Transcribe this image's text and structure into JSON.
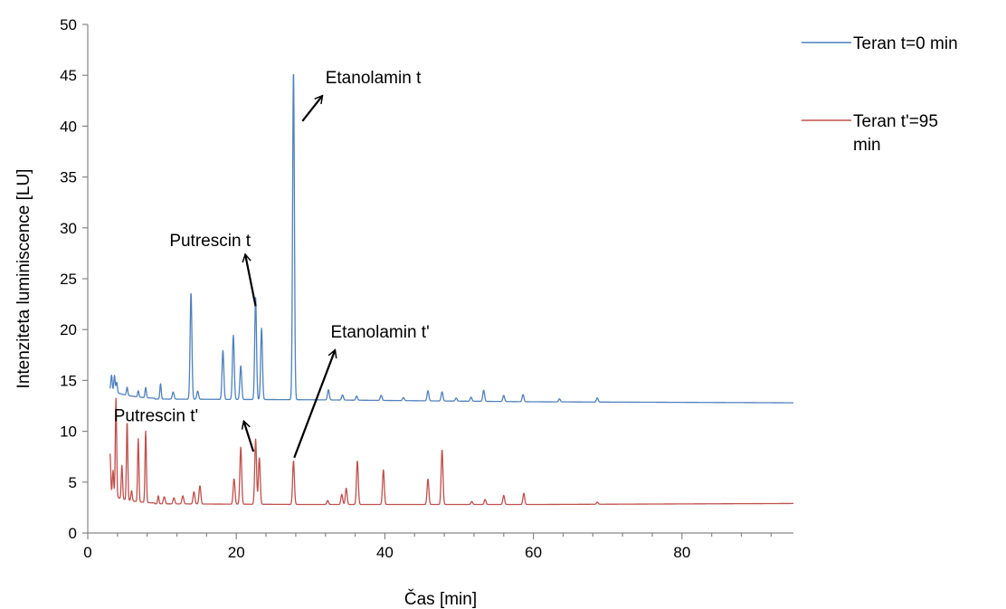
{
  "chart_data": {
    "type": "line",
    "xlabel": "Čas [min]",
    "ylabel": "Intenziteta luminiscence [LU]",
    "xlim": [
      0,
      95
    ],
    "ylim": [
      0,
      50
    ],
    "xticks": [
      0,
      20,
      40,
      60,
      80
    ],
    "xtick_labels": [
      "0",
      "20",
      "40",
      "60",
      "80"
    ],
    "xminor_step": 4,
    "yticks": [
      0,
      5,
      10,
      15,
      20,
      25,
      30,
      35,
      40,
      45,
      50
    ],
    "ytick_labels": [
      "0",
      "5",
      "10",
      "15",
      "20",
      "25",
      "30",
      "35",
      "40",
      "45",
      "50"
    ],
    "grid": false,
    "legend": "right",
    "series": [
      {
        "name": "Teran t=0 min",
        "color": "#4f81bd",
        "baseline": [
          [
            0,
            13.2
          ],
          [
            30,
            13.1
          ],
          [
            60,
            12.9
          ],
          [
            95,
            12.8
          ]
        ],
        "peaks": [
          [
            3.2,
            1.5
          ],
          [
            3.6,
            1.6
          ],
          [
            3.9,
            1.0
          ],
          [
            5.3,
            0.8
          ],
          [
            6.8,
            0.6
          ],
          [
            7.8,
            1.0
          ],
          [
            9.8,
            1.5
          ],
          [
            11.5,
            0.7
          ],
          [
            13.9,
            10.5
          ],
          [
            14.8,
            0.8
          ],
          [
            18.2,
            4.8
          ],
          [
            19.6,
            6.3
          ],
          [
            20.6,
            3.3
          ],
          [
            22.6,
            10.0
          ],
          [
            23.4,
            7.0
          ],
          [
            27.7,
            32.4
          ],
          [
            32.4,
            1.0
          ],
          [
            34.3,
            0.5
          ],
          [
            36.2,
            0.4
          ],
          [
            39.5,
            0.5
          ],
          [
            42.5,
            0.3
          ],
          [
            45.8,
            1.0
          ],
          [
            47.7,
            0.9
          ],
          [
            49.6,
            0.3
          ],
          [
            51.6,
            0.4
          ],
          [
            53.3,
            1.1
          ],
          [
            56.0,
            0.6
          ],
          [
            58.6,
            0.7
          ],
          [
            63.5,
            0.3
          ],
          [
            68.6,
            0.4
          ]
        ]
      },
      {
        "name": "Teran t'=95 min",
        "color": "#c0504d",
        "baseline": [
          [
            0,
            2.9
          ],
          [
            30,
            2.8
          ],
          [
            60,
            2.8
          ],
          [
            95,
            2.9
          ]
        ],
        "peaks": [
          [
            3.0,
            4.0
          ],
          [
            3.4,
            2.5
          ],
          [
            3.8,
            9.7
          ],
          [
            4.6,
            3.3
          ],
          [
            5.3,
            7.7
          ],
          [
            5.9,
            1.0
          ],
          [
            6.8,
            6.2
          ],
          [
            7.8,
            7.0
          ],
          [
            9.5,
            0.8
          ],
          [
            10.3,
            0.7
          ],
          [
            11.6,
            0.6
          ],
          [
            12.8,
            0.8
          ],
          [
            14.3,
            1.2
          ],
          [
            15.1,
            1.8
          ],
          [
            19.7,
            2.5
          ],
          [
            20.6,
            5.6
          ],
          [
            22.6,
            6.4
          ],
          [
            23.1,
            4.6
          ],
          [
            27.7,
            4.3
          ],
          [
            32.3,
            0.4
          ],
          [
            34.2,
            1.0
          ],
          [
            34.8,
            1.6
          ],
          [
            36.3,
            4.3
          ],
          [
            39.8,
            3.4
          ],
          [
            45.8,
            2.5
          ],
          [
            47.7,
            5.4
          ],
          [
            51.7,
            0.3
          ],
          [
            53.5,
            0.5
          ],
          [
            56.0,
            0.9
          ],
          [
            58.7,
            1.1
          ],
          [
            68.6,
            0.2
          ]
        ]
      }
    ],
    "annotations": [
      {
        "text": "Etanolamin t",
        "x": 32,
        "y": 44.2,
        "arrow_from": [
          28.9,
          40.5
        ],
        "arrow_to": [
          31.6,
          43.0
        ]
      },
      {
        "text": "Putrescin t",
        "x": 11,
        "y": 28.2,
        "arrow_from": [
          22.6,
          22.3
        ],
        "arrow_to": [
          21.2,
          27.4
        ]
      },
      {
        "text": "Etanolamin t'",
        "x": 32.7,
        "y": 19.2,
        "arrow_from": [
          27.8,
          7.4
        ],
        "arrow_to": [
          33.3,
          18.0
        ]
      },
      {
        "text": "Putrescin t'",
        "x": 3.5,
        "y": 11.0,
        "arrow_from": [
          22.3,
          8.0
        ],
        "arrow_to": [
          21.0,
          11.0
        ]
      }
    ]
  }
}
